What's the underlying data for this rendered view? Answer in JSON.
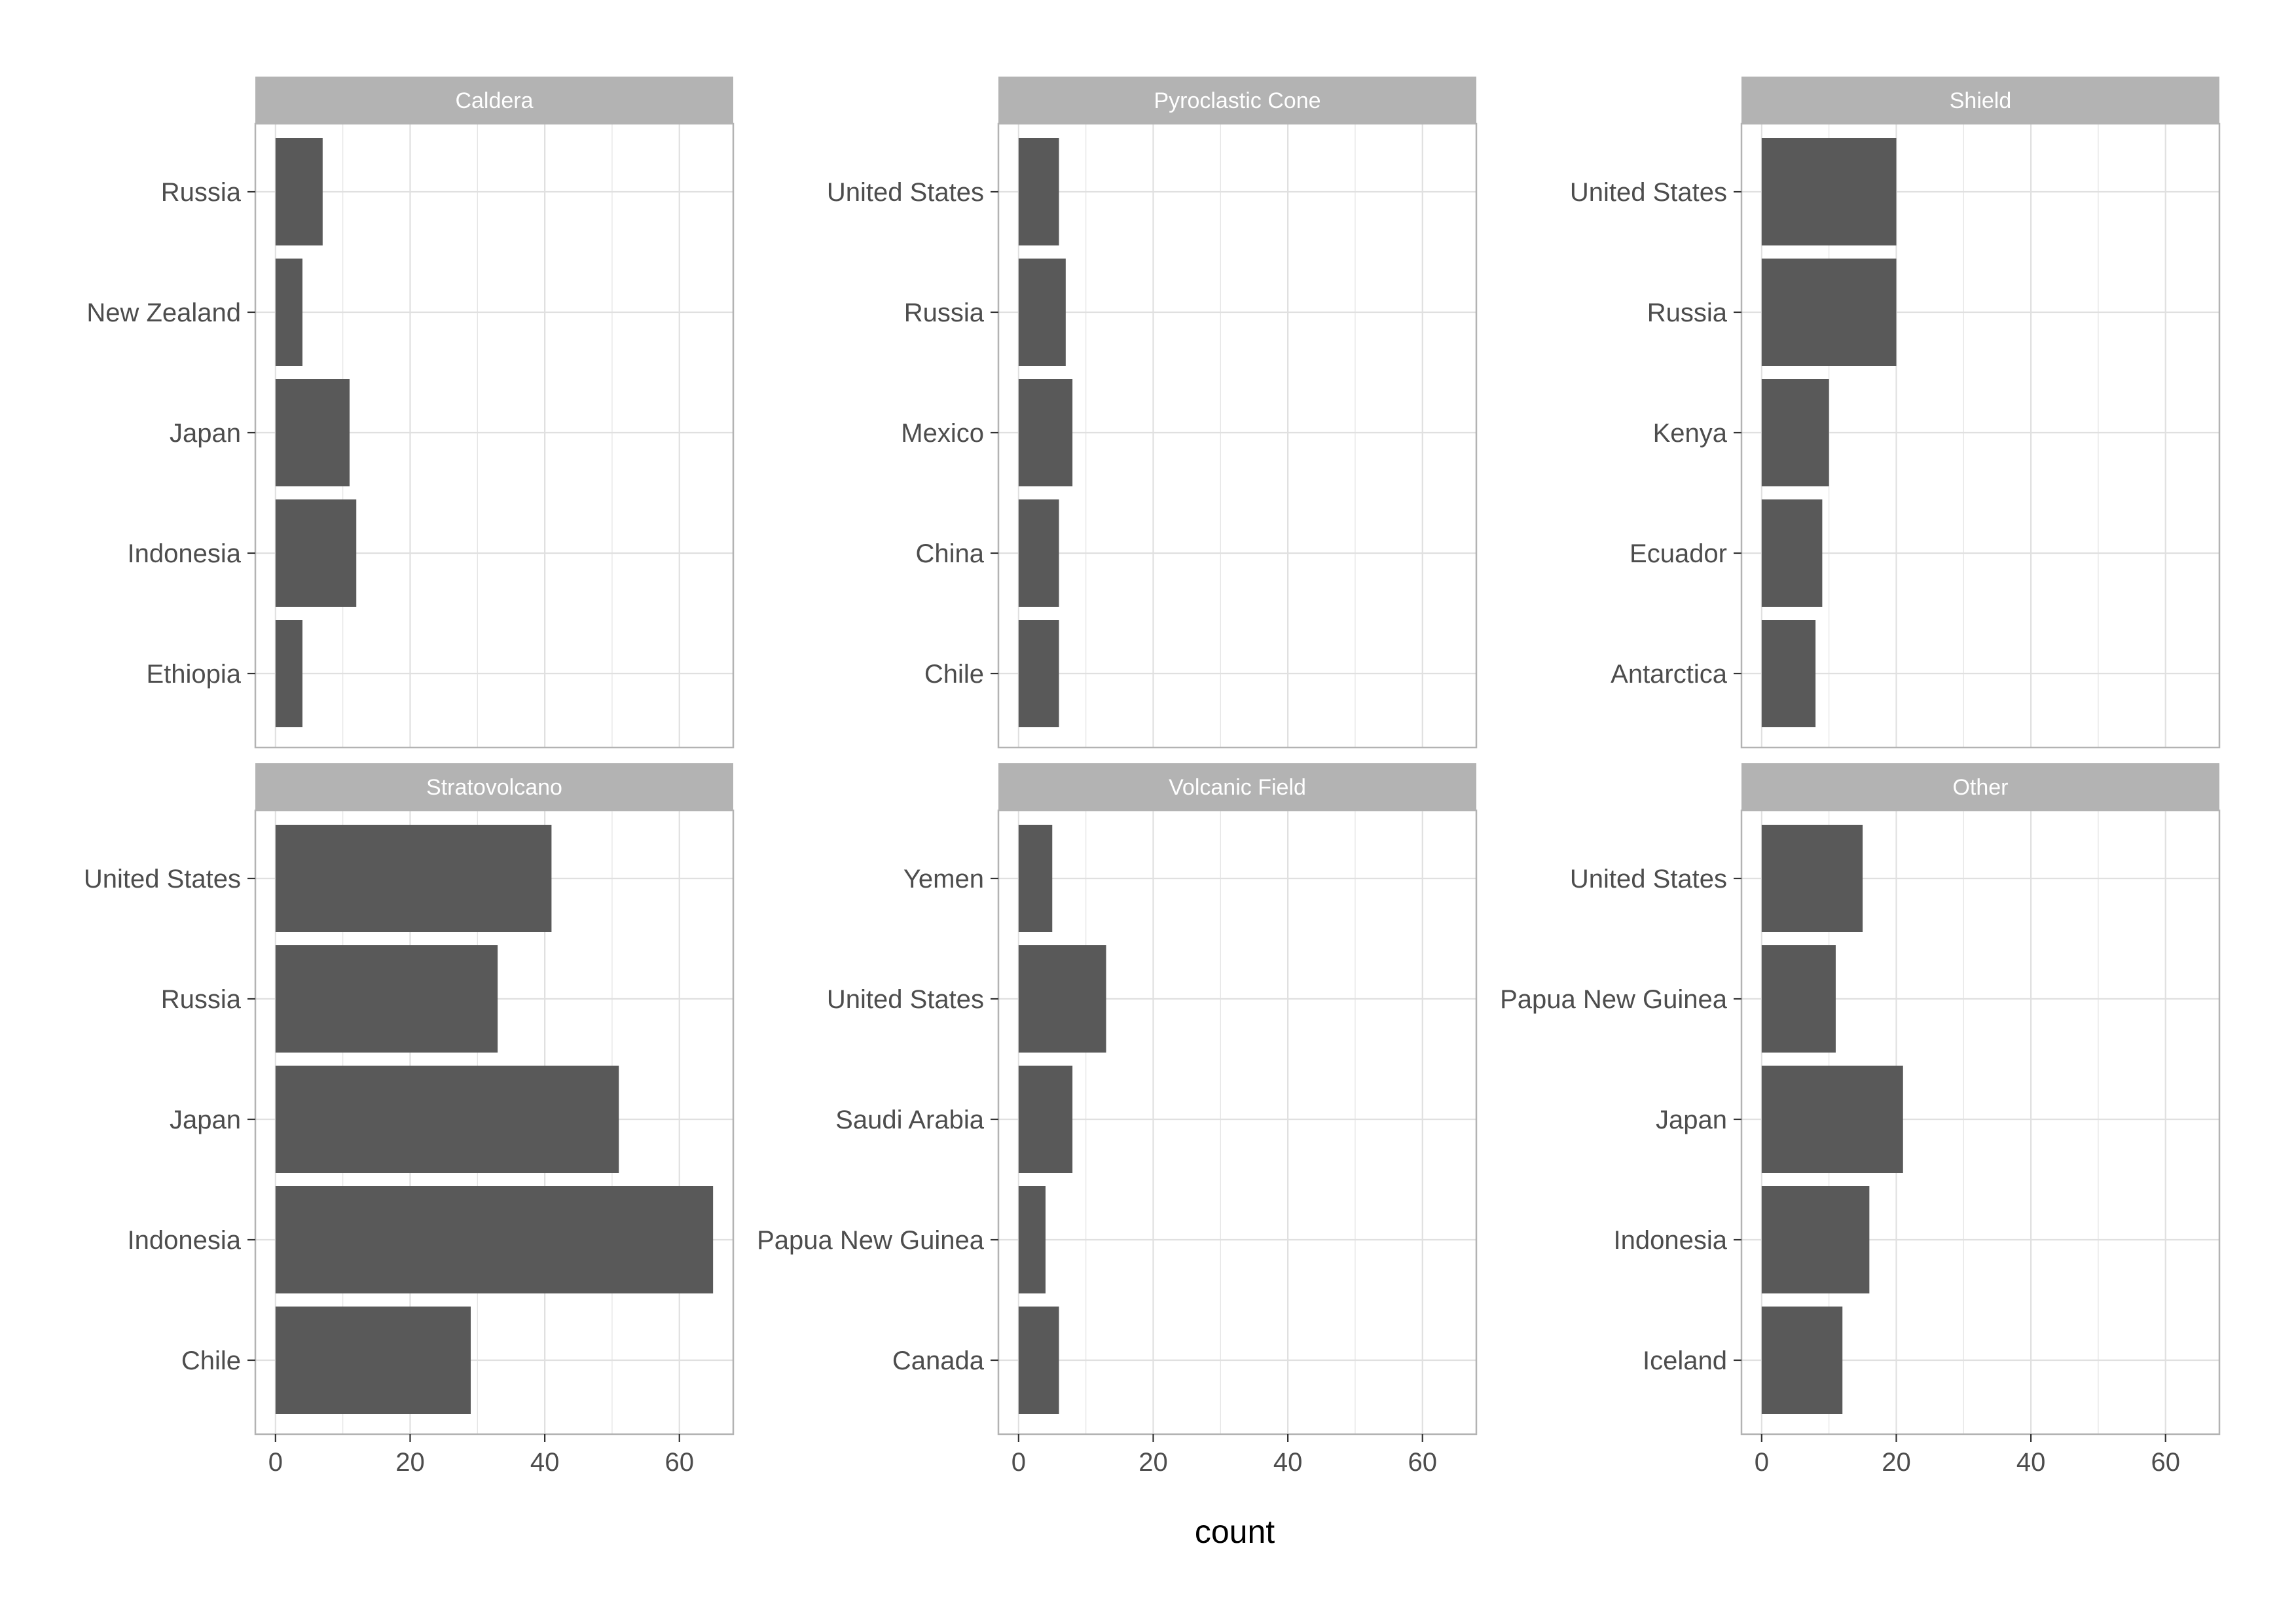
{
  "chart_data": {
    "type": "bar",
    "orientation": "horizontal",
    "layout": "facet-grid",
    "xlabel": "count",
    "ylabel": "",
    "xlim": [
      -3,
      68
    ],
    "x_ticks": [
      0,
      20,
      40,
      60
    ],
    "grid": true,
    "colors": {
      "bar": "#595959",
      "strip_fill": "#b3b3b3",
      "strip_text": "#ffffff",
      "panel_border": "#b3b3b3",
      "grid": "#e0e0e0",
      "axis_text": "#4d4d4d"
    },
    "facets": [
      {
        "title": "Caldera",
        "categories": [
          "Ethiopia",
          "Indonesia",
          "Japan",
          "New Zealand",
          "Russia"
        ],
        "values": [
          4,
          12,
          11,
          4,
          7
        ]
      },
      {
        "title": "Pyroclastic Cone",
        "categories": [
          "Chile",
          "China",
          "Mexico",
          "Russia",
          "United States"
        ],
        "values": [
          6,
          6,
          8,
          7,
          6
        ]
      },
      {
        "title": "Shield",
        "categories": [
          "Antarctica",
          "Ecuador",
          "Kenya",
          "Russia",
          "United States"
        ],
        "values": [
          8,
          9,
          10,
          20,
          20
        ]
      },
      {
        "title": "Stratovolcano",
        "categories": [
          "Chile",
          "Indonesia",
          "Japan",
          "Russia",
          "United States"
        ],
        "values": [
          29,
          65,
          51,
          33,
          41
        ]
      },
      {
        "title": "Volcanic Field",
        "categories": [
          "Canada",
          "Papua New Guinea",
          "Saudi Arabia",
          "United States",
          "Yemen"
        ],
        "values": [
          6,
          4,
          8,
          13,
          5
        ]
      },
      {
        "title": "Other",
        "categories": [
          "Iceland",
          "Indonesia",
          "Japan",
          "Papua New Guinea",
          "United States"
        ],
        "values": [
          12,
          16,
          21,
          11,
          15
        ]
      }
    ]
  }
}
